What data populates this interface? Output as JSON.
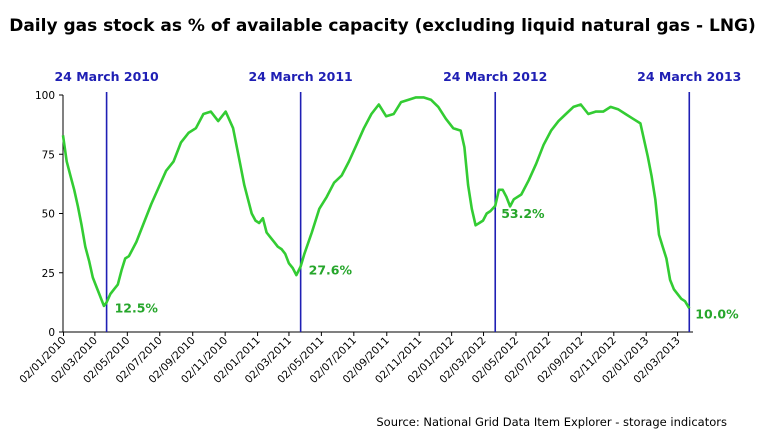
{
  "title": "Daily gas stock as % of available capacity (excluding liquid natural gas - LNG)",
  "source": "Source: National Grid Data Item Explorer - storage indicators",
  "colors": {
    "series": "#33cc33",
    "marker": "#1f1fb4",
    "label_value": "#26a62b",
    "axis": "#000000"
  },
  "chart_data": {
    "type": "line",
    "title": "Daily gas stock as % of available capacity (excluding liquid natural gas - LNG)",
    "xlabel": "",
    "ylabel": "",
    "ylim": [
      0,
      100
    ],
    "xlim": [
      "2010-01-01",
      "2013-03-31"
    ],
    "yticks": [
      "0",
      "25",
      "50",
      "75",
      "100"
    ],
    "xticks": [
      "02/01/2010",
      "02/03/2010",
      "02/05/2010",
      "02/07/2010",
      "02/09/2010",
      "02/11/2010",
      "02/01/2011",
      "02/03/2011",
      "02/05/2011",
      "02/07/2011",
      "02/09/2011",
      "02/11/2011",
      "02/01/2012",
      "02/03/2012",
      "02/05/2012",
      "02/07/2012",
      "02/09/2012",
      "02/11/2012",
      "02/01/2013",
      "02/03/2013"
    ],
    "grid": false,
    "legend": "none",
    "markers": [
      {
        "date": "2010-03-24",
        "label": "24 March 2010",
        "value_label": "12.5%"
      },
      {
        "date": "2011-03-24",
        "label": "24 March 2011",
        "value_label": "27.6%"
      },
      {
        "date": "2012-03-24",
        "label": "24 March 2012",
        "value_label": "53.2%"
      },
      {
        "date": "2013-03-24",
        "label": "24 March 2013",
        "value_label": "10.0%"
      }
    ],
    "series": [
      {
        "x": [
          "2010-01-01",
          "2010-01-08",
          "2010-01-15",
          "2010-01-22",
          "2010-01-29",
          "2010-02-05",
          "2010-02-12",
          "2010-02-19",
          "2010-02-26",
          "2010-03-05",
          "2010-03-12",
          "2010-03-19",
          "2010-03-24",
          "2010-03-31",
          "2010-04-07",
          "2010-04-14",
          "2010-04-21",
          "2010-04-28",
          "2010-05-05",
          "2010-05-19",
          "2010-06-02",
          "2010-06-16",
          "2010-06-30",
          "2010-07-14",
          "2010-07-28",
          "2010-08-11",
          "2010-08-25",
          "2010-09-08",
          "2010-09-22",
          "2010-10-06",
          "2010-10-20",
          "2010-11-03",
          "2010-11-17",
          "2010-12-01",
          "2010-12-08",
          "2010-12-15",
          "2010-12-22",
          "2010-12-29",
          "2011-01-05",
          "2011-01-12",
          "2011-01-19",
          "2011-01-26",
          "2011-02-02",
          "2011-02-09",
          "2011-02-16",
          "2011-02-23",
          "2011-03-02",
          "2011-03-09",
          "2011-03-16",
          "2011-03-24",
          "2011-03-31",
          "2011-04-14",
          "2011-04-28",
          "2011-05-12",
          "2011-05-26",
          "2011-06-09",
          "2011-06-23",
          "2011-07-07",
          "2011-07-21",
          "2011-08-04",
          "2011-08-18",
          "2011-09-01",
          "2011-09-15",
          "2011-09-29",
          "2011-10-13",
          "2011-10-27",
          "2011-11-10",
          "2011-11-24",
          "2011-12-08",
          "2011-12-22",
          "2012-01-05",
          "2012-01-19",
          "2012-01-26",
          "2012-02-02",
          "2012-02-09",
          "2012-02-16",
          "2012-02-23",
          "2012-03-01",
          "2012-03-08",
          "2012-03-15",
          "2012-03-24",
          "2012-03-31",
          "2012-04-07",
          "2012-04-14",
          "2012-04-21",
          "2012-04-28",
          "2012-05-12",
          "2012-05-26",
          "2012-06-09",
          "2012-06-23",
          "2012-07-07",
          "2012-07-21",
          "2012-08-04",
          "2012-08-18",
          "2012-09-01",
          "2012-09-15",
          "2012-09-29",
          "2012-10-13",
          "2012-10-27",
          "2012-11-10",
          "2012-11-24",
          "2012-12-08",
          "2012-12-22",
          "2013-01-05",
          "2013-01-12",
          "2013-01-19",
          "2013-01-26",
          "2013-02-02",
          "2013-02-09",
          "2013-02-16",
          "2013-02-23",
          "2013-03-02",
          "2013-03-09",
          "2013-03-16",
          "2013-03-24"
        ],
        "values": [
          83,
          72,
          66,
          60,
          53,
          45,
          36,
          30,
          23,
          19,
          15,
          11,
          12.5,
          16,
          18,
          20,
          26,
          31,
          32,
          38,
          46,
          54,
          61,
          68,
          72,
          80,
          84,
          86,
          92,
          93,
          89,
          93,
          86,
          70,
          62,
          56,
          50,
          47,
          46,
          48,
          42,
          40,
          38,
          36,
          35,
          33,
          29,
          27,
          24,
          27.6,
          33,
          42,
          52,
          57,
          63,
          66,
          72,
          79,
          86,
          92,
          96,
          91,
          92,
          97,
          98,
          99,
          99,
          98,
          95,
          90,
          86,
          85,
          78,
          62,
          52,
          45,
          46,
          47,
          50,
          51,
          53.2,
          60,
          60,
          57,
          53,
          56,
          58,
          64,
          71,
          79,
          85,
          89,
          92,
          95,
          96,
          92,
          93,
          93,
          95,
          94,
          92,
          90,
          88,
          74,
          66,
          56,
          41,
          36,
          31,
          22,
          18,
          16,
          14,
          13,
          10
        ]
      }
    ]
  }
}
